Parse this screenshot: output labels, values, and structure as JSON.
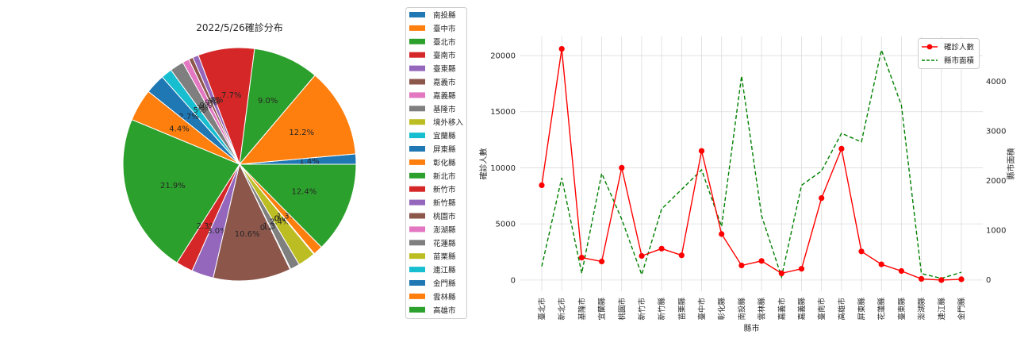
{
  "chart_data": [
    {
      "type": "pie",
      "title": "2022/5/26確診分布",
      "legend_position": "right",
      "slices": [
        {
          "label": "南投縣",
          "percent": 1.4,
          "pct_label": "1.4%",
          "color": "#1f77b4"
        },
        {
          "label": "臺中市",
          "percent": 12.2,
          "pct_label": "12.2%",
          "color": "#ff7f0e"
        },
        {
          "label": "臺北市",
          "percent": 9.0,
          "pct_label": "9.0%",
          "color": "#2ca02c"
        },
        {
          "label": "臺南市",
          "percent": 7.7,
          "pct_label": "7.7%",
          "color": "#d62728"
        },
        {
          "label": "臺東縣",
          "percent": 0.8,
          "pct_label": "0.8%",
          "color": "#9467bd"
        },
        {
          "label": "嘉義市",
          "percent": 0.6,
          "pct_label": "0.6%",
          "color": "#8c564b"
        },
        {
          "label": "嘉義縣",
          "percent": 0.9,
          "pct_label": "0.9%",
          "color": "#e377c2"
        },
        {
          "label": "基隆市",
          "percent": 1.9,
          "pct_label": "1.9%",
          "color": "#7f7f7f"
        },
        {
          "label": "境外移入",
          "percent": 0.0,
          "pct_label": "0.0%",
          "color": "#bcbd22"
        },
        {
          "label": "宜蘭縣",
          "percent": 1.5,
          "pct_label": "1.5%",
          "color": "#17becf"
        },
        {
          "label": "屏東縣",
          "percent": 2.7,
          "pct_label": "2.7%",
          "color": "#1f77b4"
        },
        {
          "label": "彰化縣",
          "percent": 4.4,
          "pct_label": "4.4%",
          "color": "#ff7f0e"
        },
        {
          "label": "新北市",
          "percent": 21.9,
          "pct_label": "21.9%",
          "color": "#2ca02c"
        },
        {
          "label": "新竹市",
          "percent": 2.3,
          "pct_label": "2.3%",
          "color": "#d62728"
        },
        {
          "label": "新竹縣",
          "percent": 3.0,
          "pct_label": "3.0%",
          "color": "#9467bd"
        },
        {
          "label": "桃園市",
          "percent": 10.6,
          "pct_label": "10.6%",
          "color": "#8c564b"
        },
        {
          "label": "澎湖縣",
          "percent": 0.1,
          "pct_label": "0.1%",
          "color": "#e377c2"
        },
        {
          "label": "花蓮縣",
          "percent": 1.3,
          "pct_label": "1.3%",
          "color": "#7f7f7f"
        },
        {
          "label": "苗栗縣",
          "percent": 2.4,
          "pct_label": "2.4%",
          "color": "#bcbd22"
        },
        {
          "label": "連江縣",
          "percent": 0.0,
          "pct_label": "0.0%",
          "color": "#17becf"
        },
        {
          "label": "金門縣",
          "percent": 0.1,
          "pct_label": "0.1%",
          "color": "#1f77b4"
        },
        {
          "label": "雲林縣",
          "percent": 1.3,
          "pct_label": "1.3%",
          "color": "#ff7f0e"
        },
        {
          "label": "高雄市",
          "percent": 12.4,
          "pct_label": "12.4%",
          "color": "#2ca02c"
        }
      ]
    },
    {
      "type": "line",
      "xlabel": "縣市",
      "ylabel": "確診人數",
      "y2label": "縣市面積",
      "ylim": [
        -1000,
        21700
      ],
      "y2lim": [
        -230,
        4900
      ],
      "yticks": [
        0,
        5000,
        10000,
        15000,
        20000
      ],
      "y2ticks": [
        0,
        1000,
        2000,
        3000,
        4000
      ],
      "grid": true,
      "legend_position": "top-right",
      "categories": [
        "臺北市",
        "新北市",
        "基隆市",
        "宜蘭縣",
        "桃園市",
        "新竹市",
        "新竹縣",
        "苗栗縣",
        "臺中市",
        "彰化縣",
        "南投縣",
        "雲林縣",
        "嘉義市",
        "嘉義縣",
        "臺南市",
        "高雄市",
        "屏東縣",
        "花蓮縣",
        "臺東縣",
        "澎湖縣",
        "連江縣",
        "金門縣"
      ],
      "series": [
        {
          "name": "確診人數",
          "axis": "left",
          "color": "#ff0000",
          "style": "solid-marker",
          "values": [
            8450,
            20600,
            2000,
            1650,
            10000,
            2150,
            2800,
            2200,
            11500,
            4100,
            1300,
            1700,
            600,
            1000,
            7300,
            11700,
            2550,
            1400,
            800,
            100,
            0,
            70
          ]
        },
        {
          "name": "縣市面積",
          "axis": "right",
          "color": "#008000",
          "style": "dashed",
          "values": [
            272,
            2053,
            133,
            2144,
            1221,
            104,
            1428,
            1820,
            2215,
            1074,
            4106,
            1291,
            60,
            1904,
            2192,
            2952,
            2776,
            4629,
            3515,
            127,
            29,
            152
          ]
        }
      ]
    }
  ]
}
